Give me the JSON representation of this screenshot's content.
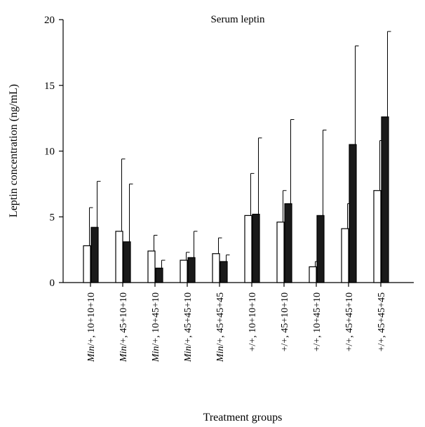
{
  "chart_data": {
    "type": "bar",
    "title": "Serum leptin",
    "xlabel": "Treatment groups",
    "ylabel": "Leptin concentration (ng/mL)",
    "ylim": [
      0,
      20
    ],
    "yticks": [
      0,
      5,
      10,
      15,
      20
    ],
    "grid": false,
    "legend": "none",
    "categories": [
      {
        "prefix": "Min",
        "rest": "/+, 10+10+10"
      },
      {
        "prefix": "Min",
        "rest": "/+, 45+10+10"
      },
      {
        "prefix": "Min",
        "rest": "/+, 10+45+10"
      },
      {
        "prefix": "Min",
        "rest": "/+, 45+45+10"
      },
      {
        "prefix": "Min",
        "rest": "/+, 45+45+45"
      },
      {
        "prefix": "",
        "rest": "+/+, 10+10+10"
      },
      {
        "prefix": "",
        "rest": "+/+, 45+10+10"
      },
      {
        "prefix": "",
        "rest": "+/+, 10+45+10"
      },
      {
        "prefix": "",
        "rest": "+/+, 45+45+10"
      },
      {
        "prefix": "",
        "rest": "+/+, 45+45+45"
      }
    ],
    "series": [
      {
        "name": "",
        "fill": "#ffffff",
        "values": [
          2.8,
          3.9,
          2.4,
          1.7,
          2.2,
          5.1,
          4.6,
          1.2,
          4.1,
          7.0
        ],
        "error": [
          2.9,
          5.5,
          1.2,
          0.6,
          1.2,
          3.2,
          2.4,
          0.4,
          1.9,
          3.8
        ]
      },
      {
        "name": "",
        "fill": "#1a1a1a",
        "values": [
          4.2,
          3.1,
          1.1,
          1.9,
          1.6,
          5.2,
          6.0,
          5.1,
          10.5,
          12.6
        ],
        "error": [
          3.5,
          4.4,
          0.6,
          2.0,
          0.5,
          5.8,
          6.4,
          6.5,
          7.5,
          6.5
        ]
      }
    ]
  }
}
